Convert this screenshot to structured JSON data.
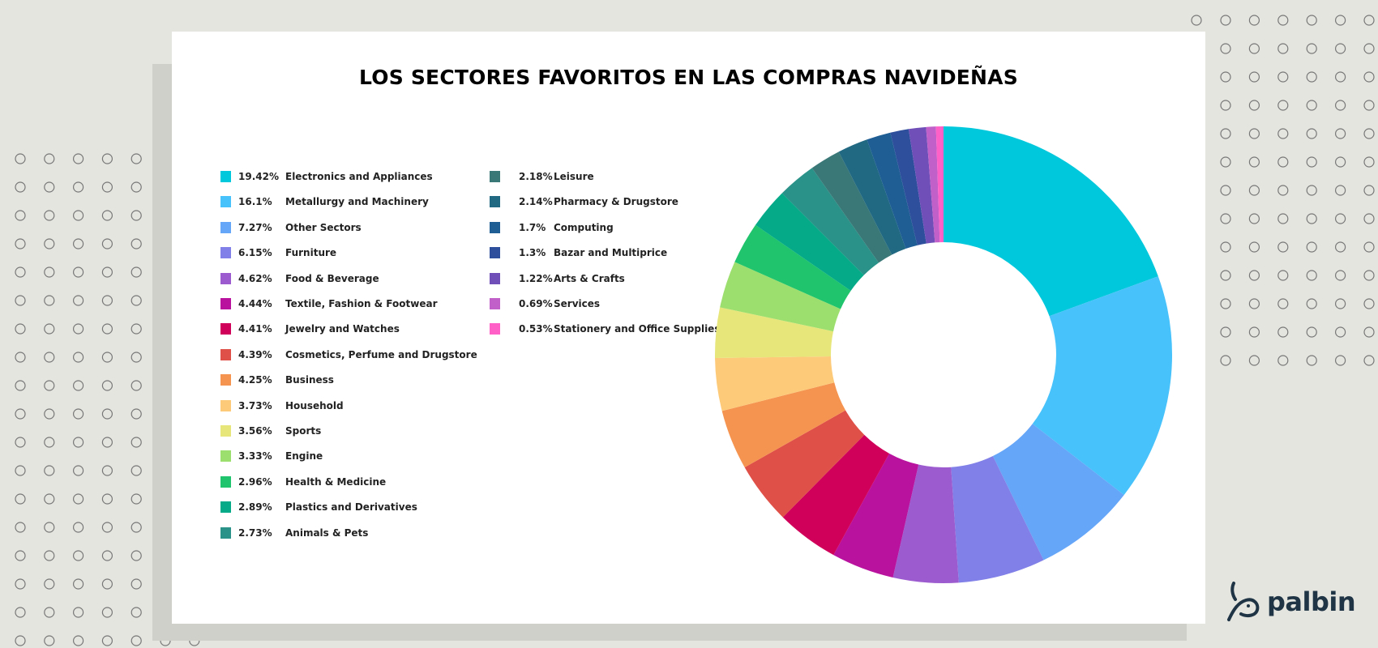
{
  "chart_data": {
    "type": "pie",
    "variant": "donut",
    "title": "LOS SECTORES FAVORITOS EN LAS COMPRAS NAVIDEÑAS",
    "legend_position": "left",
    "unit": "%",
    "slices": [
      {
        "label": "Electronics and Appliances",
        "pct_label": "19.42%",
        "value": 19.42,
        "color": "#00c8dc"
      },
      {
        "label": "Metallurgy and Machinery",
        "pct_label": "16.1%",
        "value": 16.1,
        "color": "#48c2fa"
      },
      {
        "label": "Other Sectors",
        "pct_label": "7.27%",
        "value": 7.27,
        "color": "#66a6f8"
      },
      {
        "label": "Furniture",
        "pct_label": "6.15%",
        "value": 6.15,
        "color": "#8080e8"
      },
      {
        "label": "Food & Beverage",
        "pct_label": "4.62%",
        "value": 4.62,
        "color": "#9c5ccf"
      },
      {
        "label": "Textile, Fashion & Footwear",
        "pct_label": "4.44%",
        "value": 4.44,
        "color": "#b8129e"
      },
      {
        "label": "Jewelry and Watches",
        "pct_label": "4.41%",
        "value": 4.41,
        "color": "#d0005a"
      },
      {
        "label": "Cosmetics, Perfume and Drugstore",
        "pct_label": "4.39%",
        "value": 4.39,
        "color": "#df5048"
      },
      {
        "label": "Business",
        "pct_label": "4.25%",
        "value": 4.25,
        "color": "#f59450"
      },
      {
        "label": "Household",
        "pct_label": "3.73%",
        "value": 3.73,
        "color": "#fdca7a"
      },
      {
        "label": "Sports",
        "pct_label": "3.56%",
        "value": 3.56,
        "color": "#e6e67a"
      },
      {
        "label": "Engine",
        "pct_label": "3.33%",
        "value": 3.33,
        "color": "#9ddf6e"
      },
      {
        "label": "Health & Medicine",
        "pct_label": "2.96%",
        "value": 2.96,
        "color": "#1fc46c"
      },
      {
        "label": "Plastics and Derivatives",
        "pct_label": "2.89%",
        "value": 2.89,
        "color": "#05aa88"
      },
      {
        "label": "Animals & Pets",
        "pct_label": "2.73%",
        "value": 2.73,
        "color": "#2a9288"
      },
      {
        "label": "Leisure",
        "pct_label": "2.18%",
        "value": 2.18,
        "color": "#3a7878"
      },
      {
        "label": "Pharmacy & Drugstore",
        "pct_label": "2.14%",
        "value": 2.14,
        "color": "#216882"
      },
      {
        "label": "Computing",
        "pct_label": "1.7%",
        "value": 1.7,
        "color": "#1e5e94"
      },
      {
        "label": "Bazar and Multiprice",
        "pct_label": "1.3%",
        "value": 1.3,
        "color": "#2e4f9c"
      },
      {
        "label": "Arts & Crafts",
        "pct_label": "1.22%",
        "value": 1.22,
        "color": "#7050b8"
      },
      {
        "label": "Services",
        "pct_label": "0.69%",
        "value": 0.69,
        "color": "#c060c8"
      },
      {
        "label": "Stationery and Office Supplies",
        "pct_label": "0.53%",
        "value": 0.53,
        "color": "#ff60c8"
      }
    ]
  },
  "brand": {
    "logo_text": "palbin",
    "color": "#1f3545"
  },
  "colors": {
    "background": "#e5e5e0",
    "shadow": "#d0d0cb",
    "card": "#ffffff"
  }
}
